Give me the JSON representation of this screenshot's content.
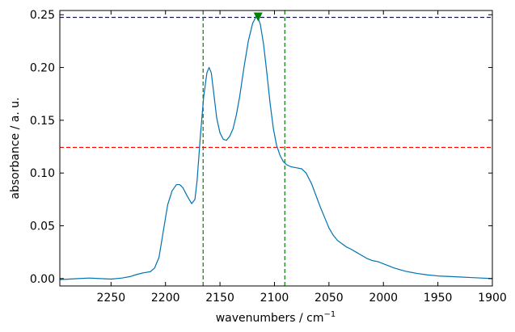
{
  "chart_data": {
    "type": "line",
    "xlabel": "wavenumbers / cm",
    "xlabel_sup": "−1",
    "ylabel": "absorbance / a. u.",
    "xlim": [
      2297,
      1900
    ],
    "ylim": [
      -0.007,
      0.254
    ],
    "x_ticks": [
      2250,
      2200,
      2150,
      2100,
      2050,
      2000,
      1950,
      1900
    ],
    "x_tick_labels": [
      "2250",
      "2200",
      "2150",
      "2100",
      "2050",
      "2000",
      "1950",
      "1900"
    ],
    "y_ticks": [
      0.0,
      0.05,
      0.1,
      0.15,
      0.2,
      0.25
    ],
    "y_tick_labels": [
      "0.00",
      "0.05",
      "0.10",
      "0.15",
      "0.20",
      "0.25"
    ],
    "grid": false,
    "series": [
      {
        "color": "#0072b2",
        "x": [
          2297,
          2280,
          2270,
          2260,
          2250,
          2240,
          2232,
          2226,
          2220,
          2214,
          2210,
          2206,
          2202,
          2198,
          2194,
          2190,
          2187,
          2184,
          2180,
          2176,
          2173,
          2171,
          2168,
          2165,
          2162,
          2160,
          2158,
          2156,
          2153,
          2150,
          2147,
          2144,
          2141,
          2138,
          2135,
          2132,
          2128,
          2124,
          2120,
          2117,
          2115,
          2113,
          2110,
          2107,
          2104,
          2101,
          2098,
          2095,
          2092,
          2089,
          2085,
          2080,
          2075,
          2071,
          2066,
          2062,
          2058,
          2054,
          2050,
          2046,
          2042,
          2038,
          2034,
          2030,
          2025,
          2020,
          2015,
          2010,
          2005,
          2000,
          1995,
          1990,
          1980,
          1970,
          1960,
          1950,
          1940,
          1930,
          1920,
          1910,
          1900
        ],
        "y": [
          -0.001,
          0.0,
          0.0005,
          0.0,
          -0.0005,
          0.0005,
          0.002,
          0.004,
          0.0055,
          0.0065,
          0.01,
          0.02,
          0.045,
          0.07,
          0.083,
          0.089,
          0.089,
          0.086,
          0.078,
          0.071,
          0.075,
          0.093,
          0.135,
          0.172,
          0.195,
          0.2,
          0.195,
          0.178,
          0.152,
          0.138,
          0.132,
          0.131,
          0.135,
          0.142,
          0.155,
          0.172,
          0.2,
          0.225,
          0.242,
          0.248,
          0.247,
          0.241,
          0.222,
          0.195,
          0.166,
          0.142,
          0.126,
          0.117,
          0.111,
          0.108,
          0.106,
          0.105,
          0.104,
          0.1,
          0.09,
          0.079,
          0.068,
          0.058,
          0.048,
          0.041,
          0.036,
          0.033,
          0.03,
          0.028,
          0.025,
          0.022,
          0.019,
          0.017,
          0.016,
          0.014,
          0.012,
          0.01,
          0.007,
          0.005,
          0.0035,
          0.0025,
          0.002,
          0.0015,
          0.001,
          0.0005,
          0.0
        ]
      }
    ],
    "reference_lines": [
      {
        "orientation": "horizontal",
        "value": 0.2475,
        "color": "#0000ff",
        "style": "dashed"
      },
      {
        "orientation": "horizontal",
        "value": 0.1243,
        "color": "#ff0000",
        "style": "dashed"
      },
      {
        "orientation": "vertical",
        "value": 2165.5,
        "color": "#008000",
        "style": "dashed"
      },
      {
        "orientation": "vertical",
        "value": 2090.5,
        "color": "#008000",
        "style": "dashed"
      }
    ],
    "marker": {
      "shape": "triangle-down",
      "x": 2115,
      "y": 0.2475,
      "color": "#008000"
    }
  }
}
